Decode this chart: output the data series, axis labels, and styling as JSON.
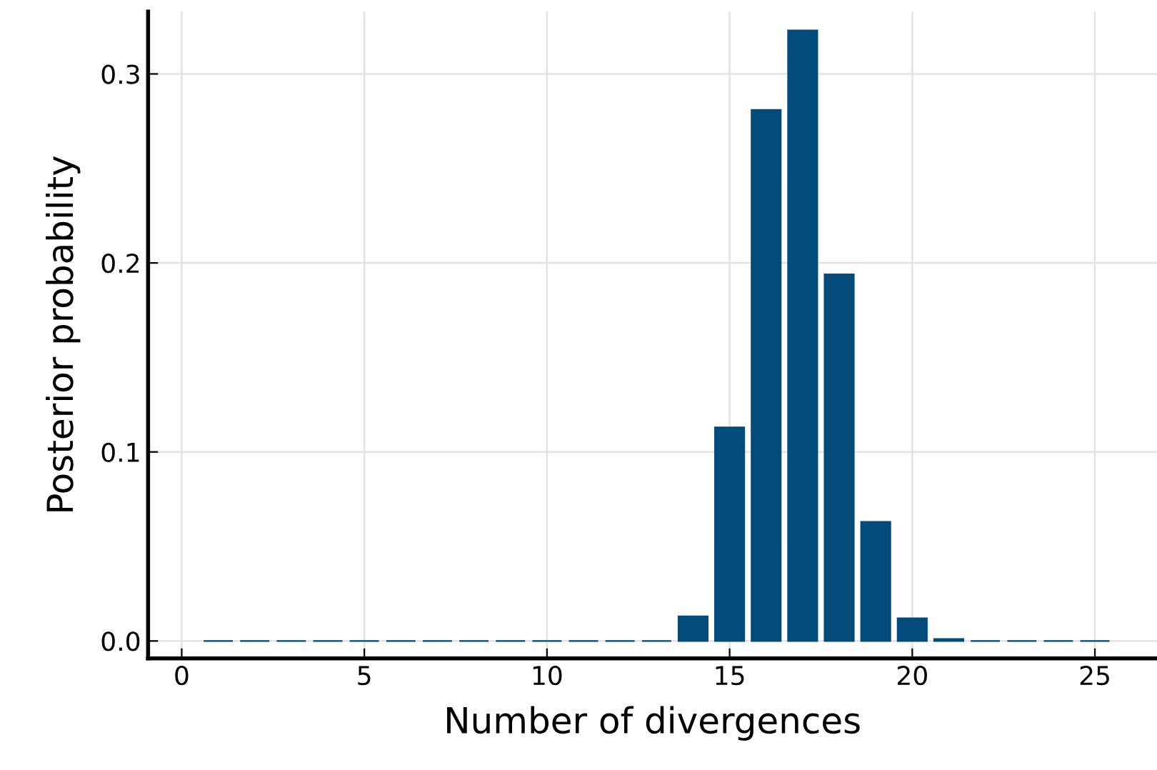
{
  "chart_data": {
    "type": "bar",
    "xlabel": "Number of divergences",
    "ylabel": "Posterior probability",
    "x": [
      1,
      2,
      3,
      4,
      5,
      6,
      7,
      8,
      9,
      10,
      11,
      12,
      13,
      14,
      15,
      16,
      17,
      18,
      19,
      20,
      21,
      22,
      23,
      24,
      25
    ],
    "values": [
      0,
      0,
      0,
      0,
      0,
      0,
      0,
      0,
      0,
      0,
      0,
      0,
      0,
      0.013,
      0.113,
      0.281,
      0.323,
      0.194,
      0.063,
      0.012,
      0.001,
      0,
      0,
      0,
      0
    ],
    "color": "#034b7a",
    "xlim": [
      -0.92,
      26.7
    ],
    "ylim": [
      -0.0092,
      0.333
    ],
    "xticks": [
      0,
      5,
      10,
      15,
      20,
      25
    ],
    "yticks": [
      {
        "value": 0,
        "label": "0.0"
      },
      {
        "value": 0.1,
        "label": "0.1"
      },
      {
        "value": 0.2,
        "label": "0.2"
      },
      {
        "value": 0.3,
        "label": "0.3"
      }
    ],
    "grid": true,
    "legend": false
  }
}
